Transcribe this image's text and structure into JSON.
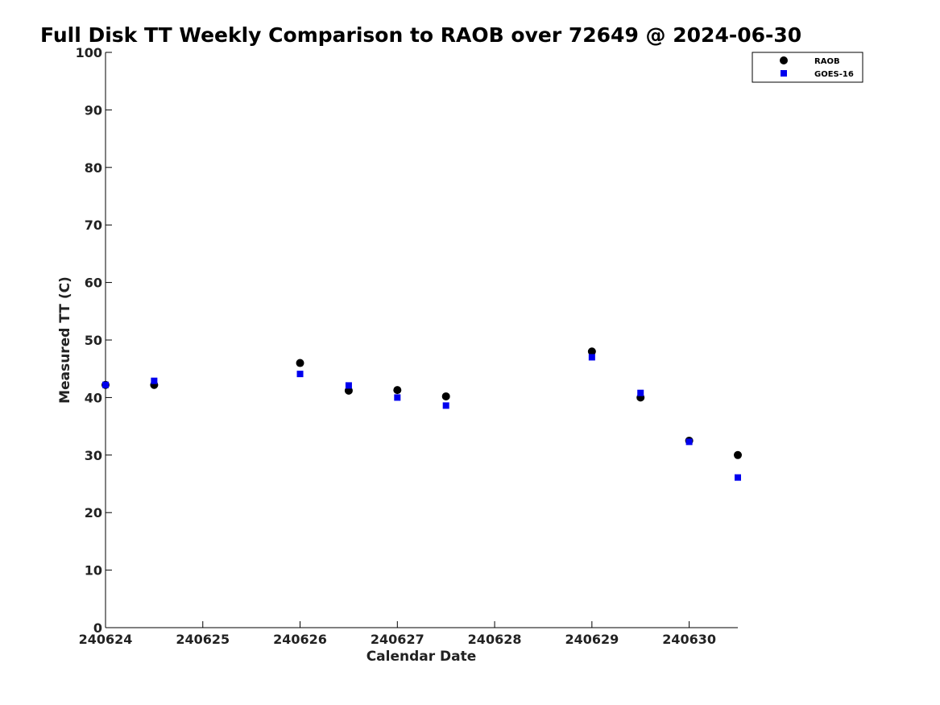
{
  "chart_data": {
    "type": "scatter",
    "title": "Full Disk TT Weekly Comparison to RAOB over 72649 @ 2024-06-30",
    "xlabel": "Calendar Date",
    "ylabel": "Measured TT (C)",
    "xlim": [
      "2024-06-24",
      "2024-06-30T12:00"
    ],
    "ylim": [
      0,
      100
    ],
    "x_ticks": [
      "240624",
      "240625",
      "240626",
      "240627",
      "240628",
      "240629",
      "240630"
    ],
    "y_ticks": [
      "0",
      "10",
      "20",
      "30",
      "40",
      "50",
      "60",
      "70",
      "80",
      "90",
      "100"
    ],
    "grid": false,
    "legend": "top-right",
    "series": [
      {
        "name": "RAOB",
        "marker": "circle",
        "color": "#000000",
        "x": [
          "2024-06-24T00:00",
          "2024-06-24T12:00",
          "2024-06-26T00:00",
          "2024-06-26T12:00",
          "2024-06-27T00:00",
          "2024-06-27T12:00",
          "2024-06-29T00:00",
          "2024-06-29T12:00",
          "2024-06-30T00:00",
          "2024-06-30T12:00"
        ],
        "y": [
          42.2,
          42.2,
          46.0,
          41.2,
          41.3,
          40.2,
          48.0,
          40.0,
          32.5,
          30.0
        ]
      },
      {
        "name": "GOES-16",
        "marker": "square",
        "color": "#0000ee",
        "x": [
          "2024-06-24T00:00",
          "2024-06-24T12:00",
          "2024-06-26T00:00",
          "2024-06-26T12:00",
          "2024-06-27T00:00",
          "2024-06-27T12:00",
          "2024-06-29T00:00",
          "2024-06-29T12:00",
          "2024-06-30T00:00",
          "2024-06-30T12:00"
        ],
        "y": [
          42.2,
          42.9,
          44.1,
          42.1,
          40.0,
          38.6,
          47.0,
          40.8,
          32.3,
          26.1
        ]
      }
    ]
  }
}
